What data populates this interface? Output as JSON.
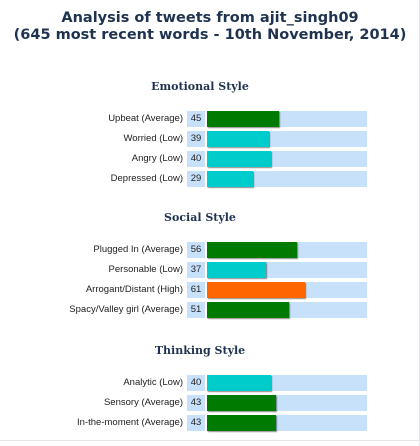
{
  "title_line1": "Analysis of tweets from ajit_singh09",
  "title_line2": "(645 most recent words - 10th November, 2014)",
  "colors": {
    "Average": "#007a00",
    "Low": "#00cccc",
    "High": "#ff6600",
    "track": "#c7e1fa",
    "title": "#1f3350"
  },
  "chart_data": {
    "type": "bar",
    "orientation": "horizontal",
    "xlim": [
      0,
      100
    ],
    "groups": [
      {
        "name": "Emotional Style",
        "bars": [
          {
            "label": "Upbeat (Average)",
            "level": "Average",
            "value": 45
          },
          {
            "label": "Worried (Low)",
            "level": "Low",
            "value": 39
          },
          {
            "label": "Angry (Low)",
            "level": "Low",
            "value": 40
          },
          {
            "label": "Depressed (Low)",
            "level": "Low",
            "value": 29
          }
        ]
      },
      {
        "name": "Social Style",
        "bars": [
          {
            "label": "Plugged In (Average)",
            "level": "Average",
            "value": 56
          },
          {
            "label": "Personable (Low)",
            "level": "Low",
            "value": 37
          },
          {
            "label": "Arrogant/Distant (High)",
            "level": "High",
            "value": 61
          },
          {
            "label": "Spacy/Valley girl (Average)",
            "level": "Average",
            "value": 51
          }
        ]
      },
      {
        "name": "Thinking Style",
        "bars": [
          {
            "label": "Analytic (Low)",
            "level": "Low",
            "value": 40
          },
          {
            "label": "Sensory (Average)",
            "level": "Average",
            "value": 43
          },
          {
            "label": "In-the-moment (Average)",
            "level": "Average",
            "value": 43
          }
        ]
      }
    ]
  }
}
